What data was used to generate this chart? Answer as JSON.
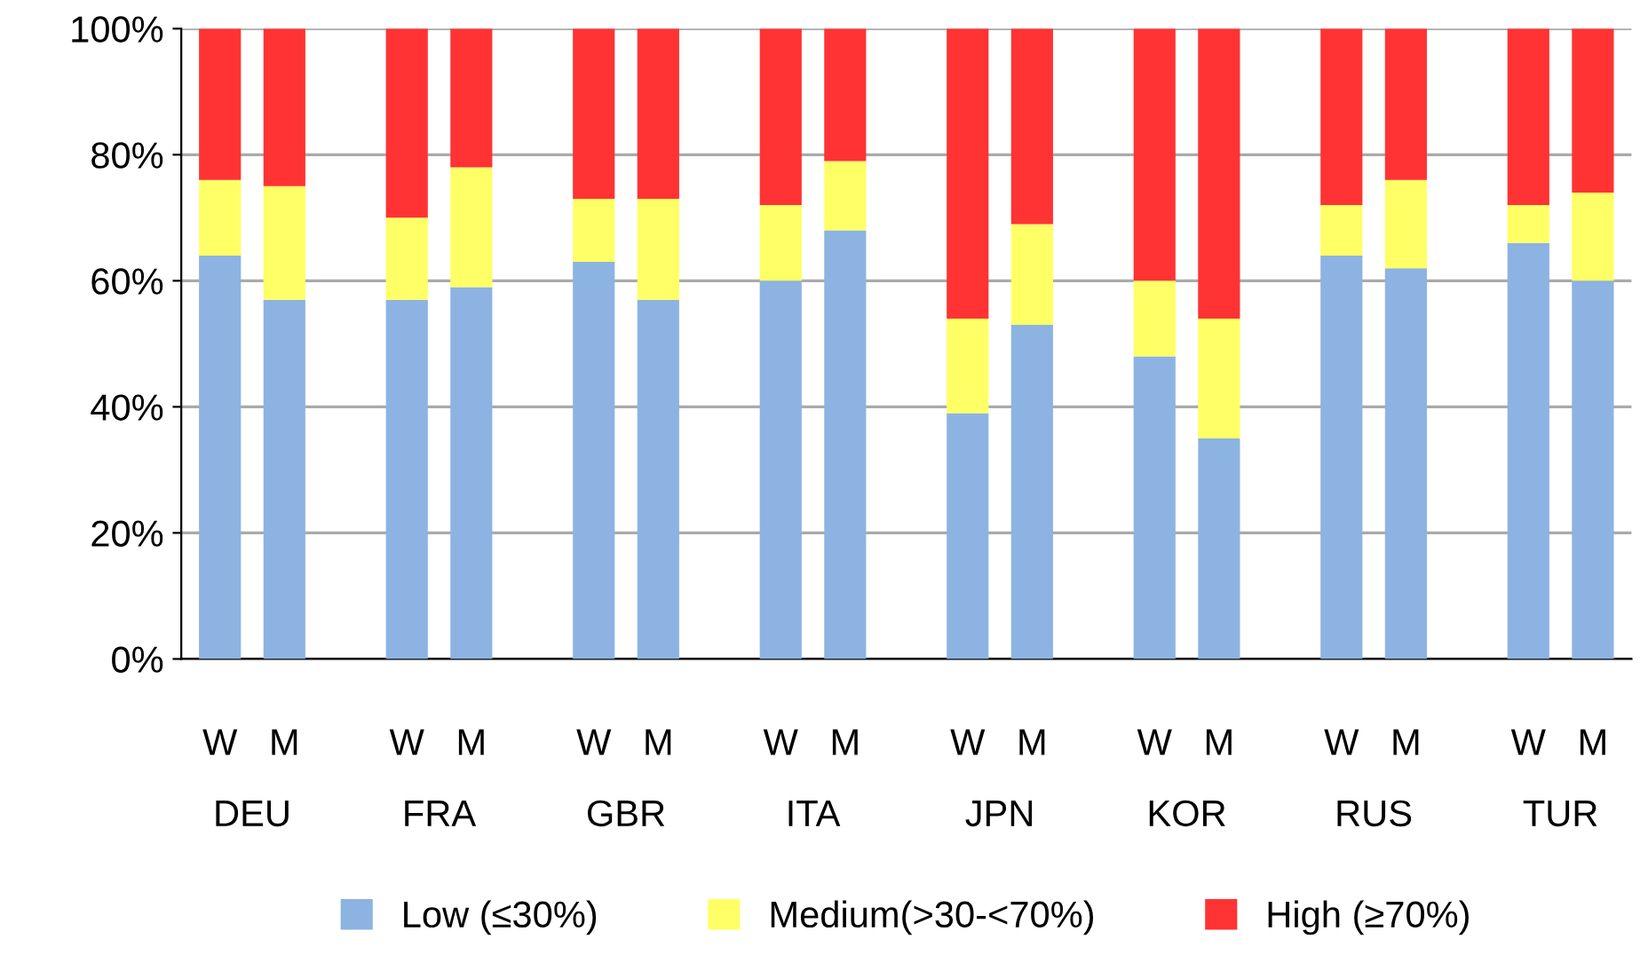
{
  "chart_data": {
    "type": "bar",
    "stacked": true,
    "categories": [
      "W",
      "M",
      "W",
      "M",
      "W",
      "M",
      "W",
      "M",
      "W",
      "M",
      "W",
      "M",
      "W",
      "M",
      "W",
      "M"
    ],
    "annotations": [
      "DEU",
      "FRA",
      "GBR",
      "ITA",
      "JPN",
      "KOR",
      "RUS",
      "TUR"
    ],
    "series": [
      {
        "name": "Low (≤30%)",
        "color": "#8db3e2",
        "values": [
          64,
          57,
          57,
          59,
          63,
          57,
          60,
          68,
          39,
          53,
          48,
          35,
          64,
          62,
          66,
          60
        ]
      },
      {
        "name": "Medium(>30-<70%)",
        "color": "#ffff66",
        "values": [
          12,
          18,
          13,
          19,
          10,
          16,
          12,
          11,
          15,
          16,
          12,
          19,
          8,
          14,
          6,
          14
        ]
      },
      {
        "name": "High (≥70%)",
        "color": "#ff3333",
        "values": [
          24,
          25,
          30,
          22,
          27,
          27,
          28,
          21,
          46,
          31,
          40,
          46,
          28,
          24,
          28,
          26
        ]
      }
    ],
    "ylim": [
      0,
      100
    ],
    "yticks": [
      {
        "value": 0,
        "label": "0%"
      },
      {
        "value": 20,
        "label": "20%"
      },
      {
        "value": 40,
        "label": "40%"
      },
      {
        "value": 60,
        "label": "60%"
      },
      {
        "value": 80,
        "label": "80%"
      },
      {
        "value": 100,
        "label": "100%"
      }
    ],
    "grid": "y",
    "legend": "bottom"
  }
}
